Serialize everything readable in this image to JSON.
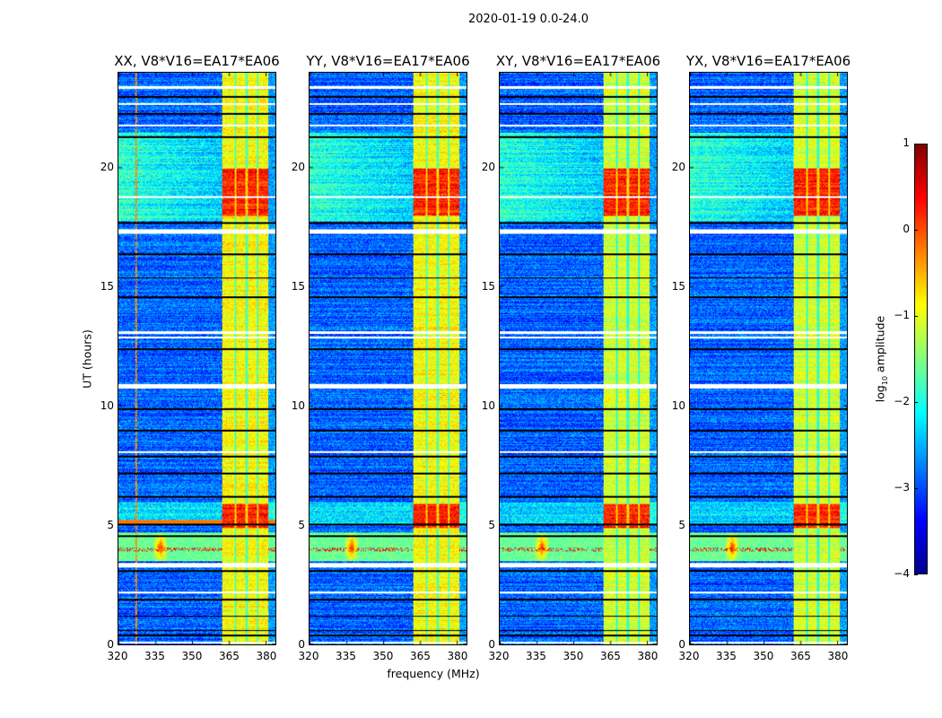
{
  "figure": {
    "title": "2020-01-19 0.0-24.0",
    "xlabel": "frequency (MHz)",
    "ylabel": "UT (hours)",
    "colorbar": {
      "label_prefix": "log",
      "label_sub": "10",
      "label_suffix": " amplitude",
      "ticks": [
        "1",
        "0",
        "−1",
        "−2",
        "−3",
        "−4"
      ],
      "range": [
        -4,
        1
      ],
      "colormap": "jet"
    }
  },
  "chart_data": {
    "type": "heatmap",
    "title": "2020-01-19 0.0-24.0",
    "xlabel": "frequency (MHz)",
    "ylabel": "UT (hours)",
    "xlim": [
      320,
      384
    ],
    "ylim": [
      0,
      24
    ],
    "xticks": [
      320,
      335,
      350,
      365,
      380
    ],
    "yticks": [
      0,
      5,
      10,
      15,
      20
    ],
    "clim": [
      -4,
      1
    ],
    "panels": [
      {
        "title": "XX, V8*V16=EA17*EA06",
        "seed": 11,
        "rfi_line_mhz": 327
      },
      {
        "title": "YY, V8*V16=EA17*EA06",
        "seed": 23
      },
      {
        "title": "XY, V8*V16=EA17*EA06",
        "seed": 37
      },
      {
        "title": "YX, V8*V16=EA17*EA06",
        "seed": 51
      }
    ],
    "features": {
      "bright_band_mhz": [
        362,
        381
      ],
      "sub_band_edges_mhz": [
        367.5,
        372,
        376.5
      ],
      "strong_rows_ut": [
        [
          18.0,
          20.0
        ],
        [
          4.9,
          5.9
        ]
      ],
      "rfi_burst_ut": [
        3.5,
        4.7
      ],
      "rfi_burst_center_mhz": 337,
      "flagged_ut_hours": [
        0.1,
        2.2,
        3.3,
        3.4,
        8.1,
        10.8,
        10.9,
        12.9,
        13.1,
        17.3,
        17.4,
        18.8,
        21.8,
        22.7,
        23.4
      ],
      "dark_rows_ut": [
        0.4,
        0.6,
        1.2,
        1.9,
        3.1,
        4.55,
        5.05,
        6.2,
        7.2,
        7.9,
        9.0,
        9.9,
        12.4,
        14.6,
        15.4,
        16.4,
        17.7,
        21.3,
        22.3,
        23.0
      ]
    }
  }
}
